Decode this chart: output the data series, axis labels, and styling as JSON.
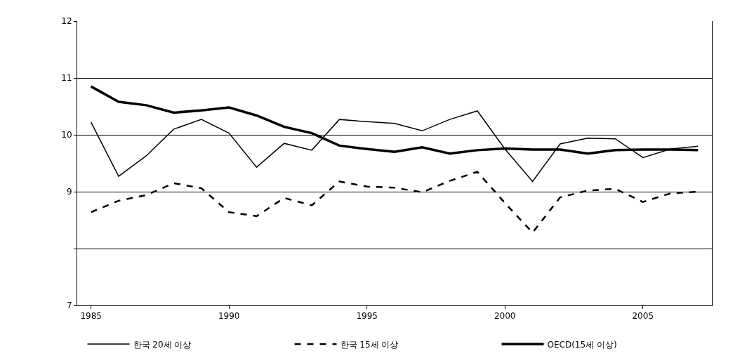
{
  "chart_data": {
    "type": "line",
    "x": [
      1985,
      1986,
      1987,
      1988,
      1989,
      1990,
      1991,
      1992,
      1993,
      1994,
      1995,
      1996,
      1997,
      1998,
      1999,
      2000,
      2001,
      2002,
      2003,
      2004,
      2005,
      2006,
      2007
    ],
    "series": [
      {
        "name": "한국 20세 이상",
        "color": "#000000",
        "line_style": "solid",
        "values": [
          10.22,
          9.27,
          9.63,
          10.1,
          10.27,
          10.03,
          9.43,
          9.85,
          9.73,
          10.27,
          10.23,
          10.2,
          10.07,
          10.27,
          10.42,
          9.75,
          9.18,
          9.84,
          9.94,
          9.93,
          9.6,
          9.75,
          9.8
        ]
      },
      {
        "name": "한국 15세 이상",
        "color": "#000000",
        "line_style": "dashed",
        "values": [
          8.64,
          8.84,
          8.94,
          9.15,
          9.06,
          8.64,
          8.57,
          8.89,
          8.76,
          9.18,
          9.09,
          9.07,
          8.99,
          9.19,
          9.35,
          8.8,
          8.28,
          8.9,
          9.02,
          9.05,
          8.82,
          8.97,
          9.0
        ]
      },
      {
        "name": "OECD(15세 이상)",
        "color": "#000000",
        "line_style": "solid",
        "values": [
          10.85,
          10.58,
          10.52,
          10.39,
          10.43,
          10.48,
          10.34,
          10.14,
          10.03,
          9.81,
          9.75,
          9.7,
          9.78,
          9.67,
          9.73,
          9.76,
          9.74,
          9.74,
          9.67,
          9.73,
          9.74,
          9.74,
          9.73
        ]
      }
    ],
    "xlim": [
      1984.5,
      2007.5
    ],
    "xticks": [
      1985,
      1990,
      1995,
      2000,
      2005
    ],
    "ylim": [
      7,
      12
    ],
    "yticks": [
      7,
      {
        "value": 8,
        "label": null
      },
      9,
      10,
      11,
      12
    ],
    "grid": "y",
    "legend": "bottom",
    "marker": "none"
  }
}
